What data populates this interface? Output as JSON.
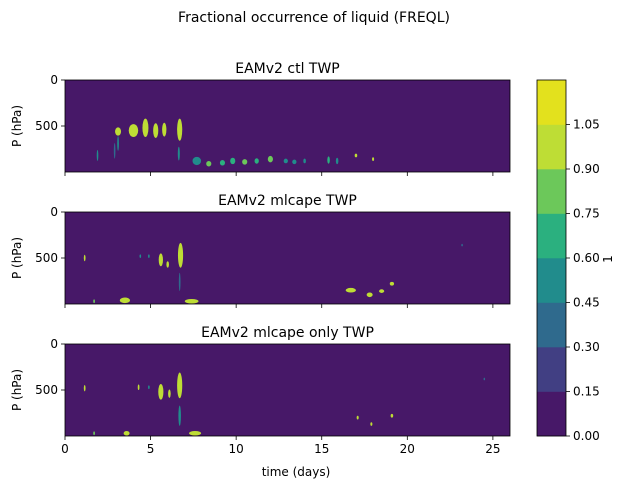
{
  "figure": {
    "suptitle": "Fractional occurrence of liquid (FREQL)",
    "xlabel": "time (days)",
    "colorbar_label": "1"
  },
  "chart_data": {
    "type": "heatmap",
    "xlim": [
      0,
      26
    ],
    "ylim": [
      1000,
      0
    ],
    "xticks": [
      0,
      5,
      10,
      15,
      20,
      25
    ],
    "yticks": [
      0,
      500
    ],
    "ylabel": "P (hPa)",
    "colorbar": {
      "ticks": [
        "0.00",
        "0.15",
        "0.30",
        "0.45",
        "0.60",
        "0.75",
        "0.90",
        "1.05"
      ],
      "levels": [
        0,
        0.15,
        0.3,
        0.45,
        0.6,
        0.75,
        0.9,
        1.05
      ],
      "colors": [
        "#471868",
        "#413f83",
        "#2f6a8d",
        "#218c8c",
        "#2bb07f",
        "#6cc85a",
        "#bedd35",
        "#e3e11d"
      ]
    },
    "background_color": "#471868",
    "panels": [
      {
        "title": "EAMv2 ctl TWP",
        "features": [
          {
            "x": 3.1,
            "p": 560,
            "w": 0.35,
            "h": 90,
            "v": 1.0
          },
          {
            "x": 3.1,
            "p": 690,
            "w": 0.1,
            "h": 160,
            "v": 0.5
          },
          {
            "x": 4.0,
            "p": 550,
            "w": 0.55,
            "h": 140,
            "v": 1.0
          },
          {
            "x": 4.7,
            "p": 520,
            "w": 0.35,
            "h": 200,
            "v": 1.0
          },
          {
            "x": 5.3,
            "p": 550,
            "w": 0.3,
            "h": 160,
            "v": 0.95
          },
          {
            "x": 5.8,
            "p": 540,
            "w": 0.25,
            "h": 150,
            "v": 0.95
          },
          {
            "x": 6.7,
            "p": 540,
            "w": 0.3,
            "h": 240,
            "v": 0.95
          },
          {
            "x": 6.65,
            "p": 800,
            "w": 0.12,
            "h": 150,
            "v": 0.45
          },
          {
            "x": 1.9,
            "p": 820,
            "w": 0.08,
            "h": 120,
            "v": 0.5
          },
          {
            "x": 2.9,
            "p": 770,
            "w": 0.07,
            "h": 170,
            "v": 0.4
          },
          {
            "x": 7.7,
            "p": 880,
            "w": 0.5,
            "h": 90,
            "v": 0.5
          },
          {
            "x": 8.4,
            "p": 910,
            "w": 0.3,
            "h": 60,
            "v": 0.8
          },
          {
            "x": 9.2,
            "p": 900,
            "w": 0.3,
            "h": 60,
            "v": 0.6
          },
          {
            "x": 9.8,
            "p": 880,
            "w": 0.3,
            "h": 70,
            "v": 0.7
          },
          {
            "x": 10.5,
            "p": 890,
            "w": 0.3,
            "h": 60,
            "v": 0.8
          },
          {
            "x": 11.2,
            "p": 880,
            "w": 0.25,
            "h": 60,
            "v": 0.6
          },
          {
            "x": 12.0,
            "p": 860,
            "w": 0.3,
            "h": 70,
            "v": 0.8
          },
          {
            "x": 12.9,
            "p": 880,
            "w": 0.25,
            "h": 50,
            "v": 0.5
          },
          {
            "x": 13.4,
            "p": 890,
            "w": 0.25,
            "h": 50,
            "v": 0.5
          },
          {
            "x": 14.0,
            "p": 880,
            "w": 0.15,
            "h": 50,
            "v": 0.45
          },
          {
            "x": 15.4,
            "p": 870,
            "w": 0.15,
            "h": 80,
            "v": 0.6
          },
          {
            "x": 15.9,
            "p": 880,
            "w": 0.15,
            "h": 70,
            "v": 0.5
          },
          {
            "x": 17.0,
            "p": 820,
            "w": 0.15,
            "h": 40,
            "v": 1.0
          },
          {
            "x": 18.0,
            "p": 860,
            "w": 0.12,
            "h": 40,
            "v": 0.9
          }
        ]
      },
      {
        "title": "EAMv2 mlcape TWP",
        "features": [
          {
            "x": 1.15,
            "p": 500,
            "w": 0.1,
            "h": 70,
            "v": 1.0
          },
          {
            "x": 4.4,
            "p": 480,
            "w": 0.08,
            "h": 40,
            "v": 0.45
          },
          {
            "x": 4.9,
            "p": 480,
            "w": 0.08,
            "h": 40,
            "v": 0.45
          },
          {
            "x": 5.6,
            "p": 520,
            "w": 0.25,
            "h": 140,
            "v": 1.0
          },
          {
            "x": 6.0,
            "p": 570,
            "w": 0.15,
            "h": 70,
            "v": 0.9
          },
          {
            "x": 6.75,
            "p": 470,
            "w": 0.3,
            "h": 270,
            "v": 1.0
          },
          {
            "x": 6.7,
            "p": 760,
            "w": 0.1,
            "h": 200,
            "v": 0.4
          },
          {
            "x": 3.5,
            "p": 960,
            "w": 0.6,
            "h": 60,
            "v": 1.0
          },
          {
            "x": 7.4,
            "p": 970,
            "w": 0.8,
            "h": 50,
            "v": 1.0
          },
          {
            "x": 1.7,
            "p": 970,
            "w": 0.1,
            "h": 40,
            "v": 0.8
          },
          {
            "x": 16.7,
            "p": 850,
            "w": 0.6,
            "h": 50,
            "v": 1.0
          },
          {
            "x": 17.8,
            "p": 900,
            "w": 0.35,
            "h": 50,
            "v": 1.0
          },
          {
            "x": 18.5,
            "p": 860,
            "w": 0.3,
            "h": 40,
            "v": 1.0
          },
          {
            "x": 19.1,
            "p": 780,
            "w": 0.25,
            "h": 40,
            "v": 1.0
          },
          {
            "x": 23.2,
            "p": 360,
            "w": 0.06,
            "h": 30,
            "v": 0.3
          }
        ]
      },
      {
        "title": "EAMv2 mlcape only TWP",
        "features": [
          {
            "x": 1.15,
            "p": 480,
            "w": 0.1,
            "h": 70,
            "v": 1.0
          },
          {
            "x": 4.3,
            "p": 470,
            "w": 0.1,
            "h": 60,
            "v": 1.0
          },
          {
            "x": 4.9,
            "p": 470,
            "w": 0.08,
            "h": 40,
            "v": 0.45
          },
          {
            "x": 5.6,
            "p": 520,
            "w": 0.3,
            "h": 170,
            "v": 1.0
          },
          {
            "x": 6.1,
            "p": 540,
            "w": 0.15,
            "h": 90,
            "v": 1.0
          },
          {
            "x": 6.7,
            "p": 450,
            "w": 0.3,
            "h": 280,
            "v": 1.0
          },
          {
            "x": 6.7,
            "p": 780,
            "w": 0.15,
            "h": 220,
            "v": 0.45
          },
          {
            "x": 3.6,
            "p": 970,
            "w": 0.35,
            "h": 50,
            "v": 1.0
          },
          {
            "x": 7.6,
            "p": 970,
            "w": 0.7,
            "h": 50,
            "v": 1.0
          },
          {
            "x": 1.7,
            "p": 970,
            "w": 0.1,
            "h": 40,
            "v": 0.8
          },
          {
            "x": 17.1,
            "p": 800,
            "w": 0.12,
            "h": 40,
            "v": 1.0
          },
          {
            "x": 17.9,
            "p": 870,
            "w": 0.12,
            "h": 40,
            "v": 1.0
          },
          {
            "x": 19.1,
            "p": 780,
            "w": 0.15,
            "h": 40,
            "v": 1.0
          },
          {
            "x": 24.5,
            "p": 380,
            "w": 0.06,
            "h": 30,
            "v": 0.3
          }
        ]
      }
    ]
  }
}
